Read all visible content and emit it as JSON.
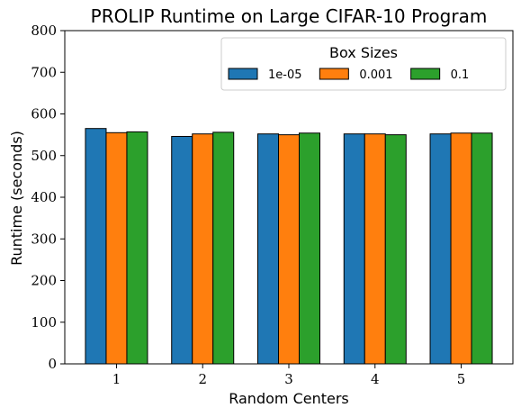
{
  "chart_data": {
    "type": "bar",
    "title": "PROLIP Runtime on Large CIFAR-10 Program",
    "xlabel": "Random Centers",
    "ylabel": "Runtime (seconds)",
    "categories": [
      "1",
      "2",
      "3",
      "4",
      "5"
    ],
    "ylim": [
      0,
      800
    ],
    "yticks": [
      0,
      100,
      200,
      300,
      400,
      500,
      600,
      700,
      800
    ],
    "legend": {
      "title": "Box Sizes",
      "placement": "top-right",
      "columns": 3
    },
    "series": [
      {
        "name": "1e-05",
        "color": "#1f77b4",
        "values": [
          565,
          546,
          552,
          552,
          552
        ]
      },
      {
        "name": "0.001",
        "color": "#ff7f0e",
        "values": [
          555,
          552,
          550,
          552,
          554
        ]
      },
      {
        "name": "0.1",
        "color": "#2ca02c",
        "values": [
          557,
          556,
          554,
          550,
          554
        ]
      }
    ],
    "grid": false
  }
}
